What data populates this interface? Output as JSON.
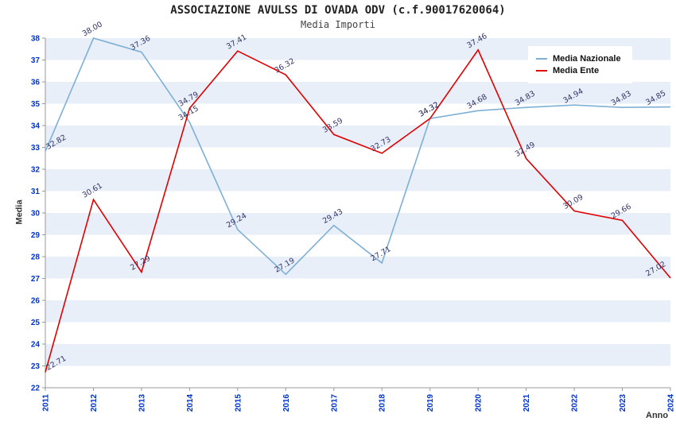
{
  "header": {
    "title": "ASSOCIAZIONE AVULSS DI OVADA ODV (c.f.90017620064)",
    "subtitle": "Media Importi"
  },
  "chart_data": {
    "type": "line",
    "title": "ASSOCIAZIONE AVULSS DI OVADA ODV (c.f.90017620064)",
    "subtitle": "Media Importi",
    "xlabel": "Anno",
    "ylabel": "Media",
    "x": [
      2011,
      2012,
      2013,
      2014,
      2015,
      2016,
      2017,
      2018,
      2019,
      2020,
      2021,
      2022,
      2023,
      2024
    ],
    "series": [
      {
        "name": "Media Nazionale",
        "color": "#7eb0d5",
        "values": [
          32.82,
          38.0,
          37.36,
          34.15,
          29.24,
          27.19,
          29.43,
          27.71,
          34.32,
          34.68,
          34.83,
          34.94,
          34.83,
          34.85
        ]
      },
      {
        "name": "Media Ente",
        "color": "#e10000",
        "values": [
          22.71,
          30.61,
          27.29,
          34.79,
          37.41,
          36.32,
          33.59,
          32.73,
          34.32,
          37.46,
          32.49,
          30.09,
          29.66,
          27.02
        ]
      }
    ],
    "ylim": [
      22,
      38
    ],
    "y_tick_step": 1,
    "legend_position": "top-right",
    "grid": "horizontal-bands",
    "band_colors": [
      "#ffffff",
      "#e8eff9"
    ],
    "tick_label_color": "#0033cc",
    "point_label_color": "#333366",
    "axis_color": "#999999"
  }
}
